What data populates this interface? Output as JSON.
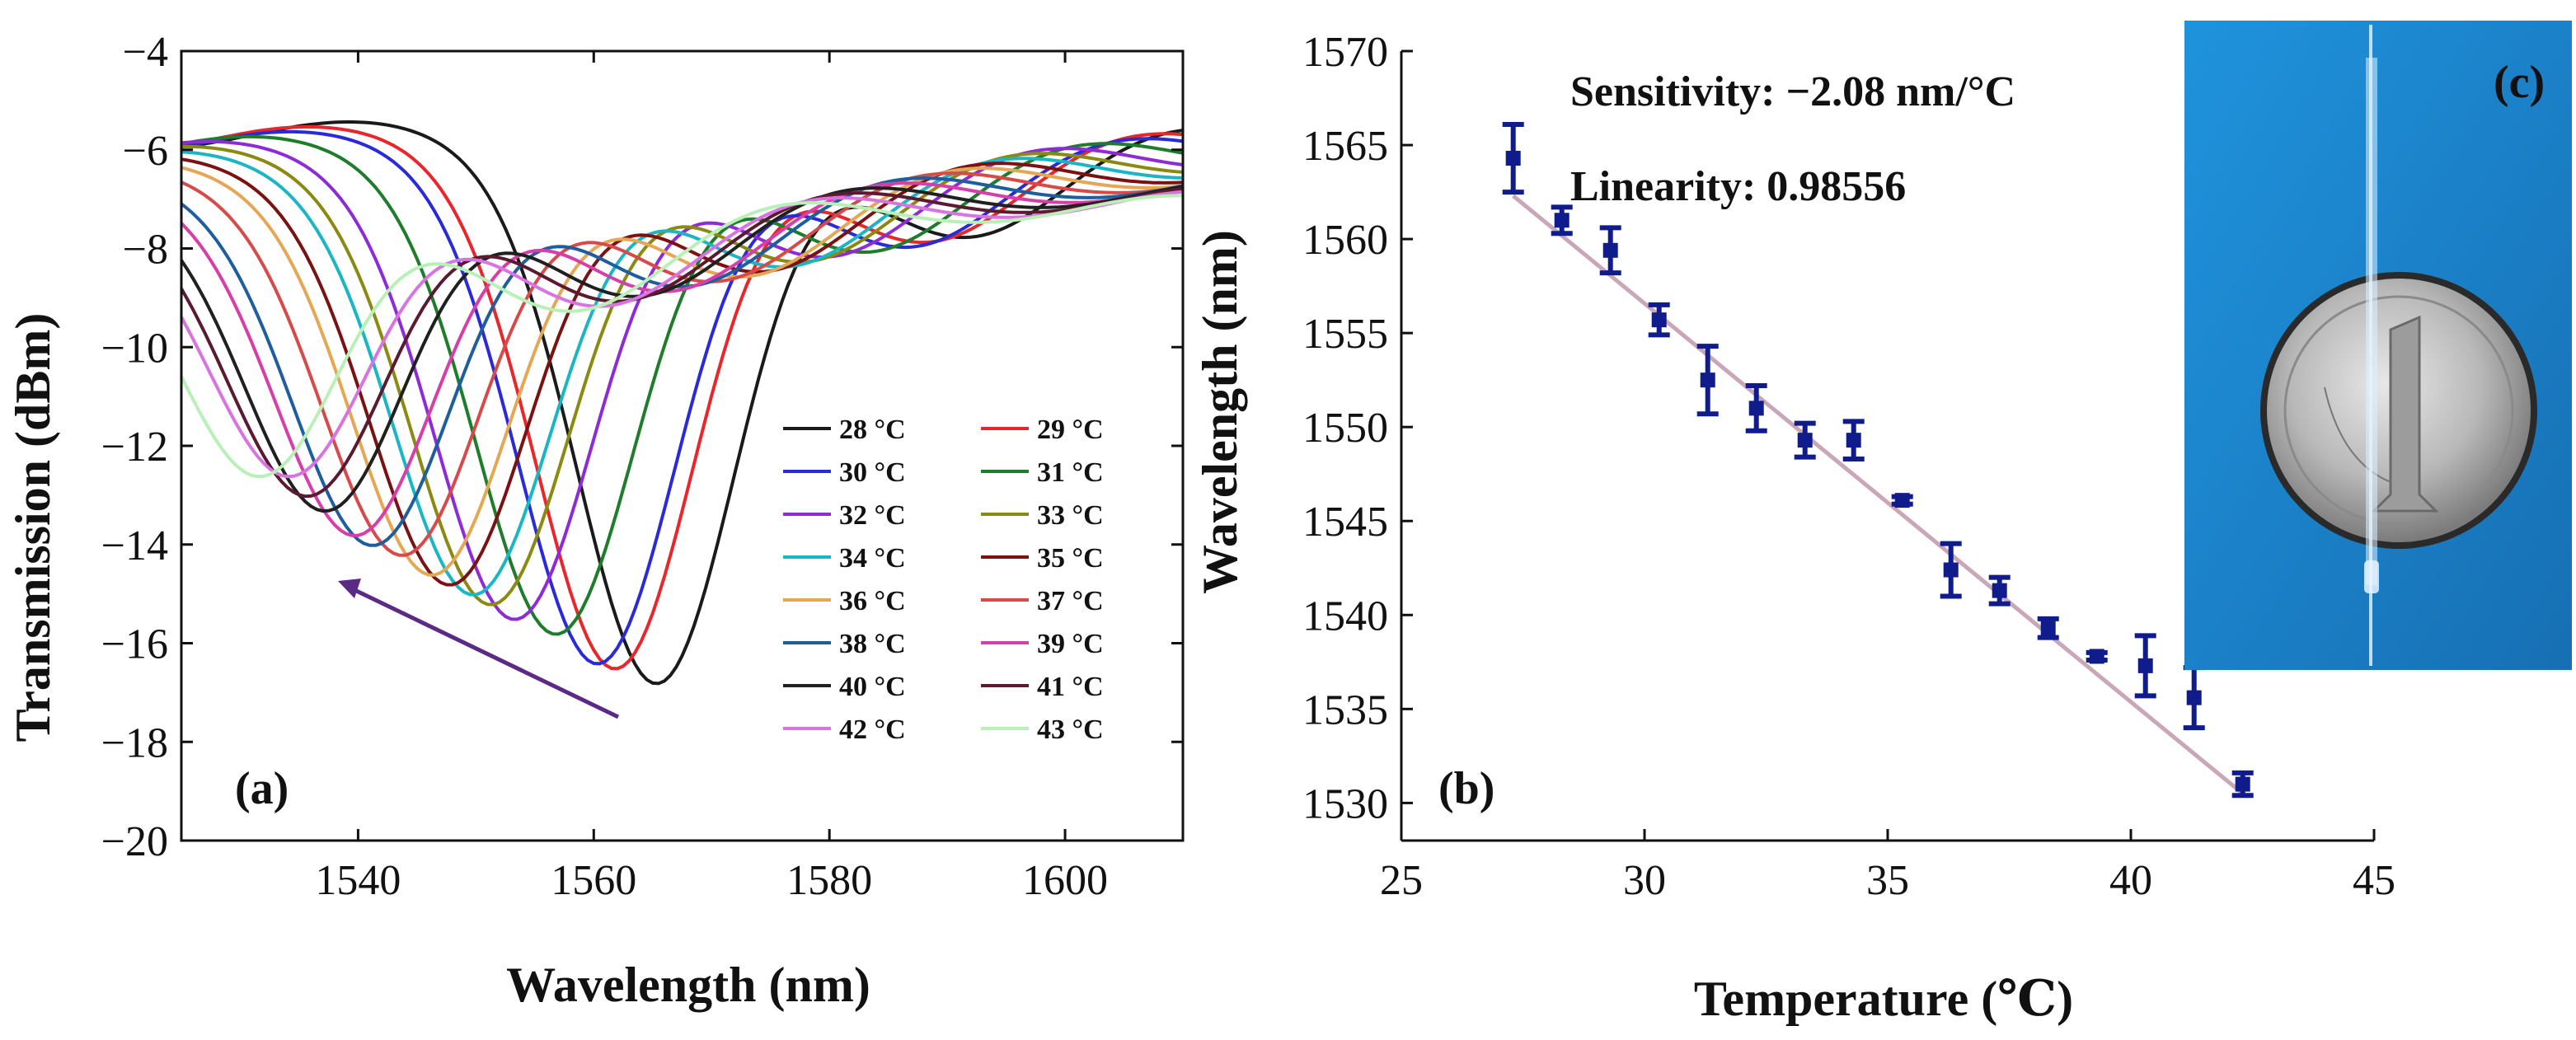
{
  "chart_data": [
    {
      "panel": "(a)",
      "type": "line",
      "title": "",
      "xlabel": "Wavelength (nm)",
      "ylabel": "Transmission (dBm)",
      "xlim": [
        1525,
        1610
      ],
      "ylim": [
        -20,
        -4
      ],
      "xticks": [
        1540,
        1560,
        1580,
        1600
      ],
      "yticks": [
        -20,
        -18,
        -16,
        -14,
        -12,
        -10,
        -8,
        -6,
        -4
      ],
      "legend_location": "lower-right",
      "annotation": "arrow indicating dip shift toward shorter wavelength with increasing temperature",
      "series": [
        {
          "name": "28 °C",
          "color": "#1a1a1a",
          "dip_wavelength": 1565.5,
          "dip_depth": -16.8,
          "baseline": -5.7
        },
        {
          "name": "29 °C",
          "color": "#e8262b",
          "dip_wavelength": 1562.0,
          "dip_depth": -16.5,
          "baseline": -5.8
        },
        {
          "name": "30 °C",
          "color": "#2a2ad9",
          "dip_wavelength": 1560.5,
          "dip_depth": -16.4,
          "baseline": -5.9
        },
        {
          "name": "31 °C",
          "color": "#1e7d2a",
          "dip_wavelength": 1557.0,
          "dip_depth": -15.8,
          "baseline": -6.0
        },
        {
          "name": "32 °C",
          "color": "#8e2bd6",
          "dip_wavelength": 1553.5,
          "dip_depth": -15.5,
          "baseline": -6.1
        },
        {
          "name": "33 °C",
          "color": "#8a8a12",
          "dip_wavelength": 1551.5,
          "dip_depth": -15.2,
          "baseline": -6.2
        },
        {
          "name": "34 °C",
          "color": "#1ab6c4",
          "dip_wavelength": 1550.0,
          "dip_depth": -15.0,
          "baseline": -6.3
        },
        {
          "name": "35 °C",
          "color": "#7a1212",
          "dip_wavelength": 1548.0,
          "dip_depth": -14.8,
          "baseline": -6.4
        },
        {
          "name": "36 °C",
          "color": "#e6a755",
          "dip_wavelength": 1546.5,
          "dip_depth": -14.6,
          "baseline": -6.5
        },
        {
          "name": "37 °C",
          "color": "#d74a4a",
          "dip_wavelength": 1544.0,
          "dip_depth": -14.2,
          "baseline": -6.6
        },
        {
          "name": "38 °C",
          "color": "#1f5e9e",
          "dip_wavelength": 1541.5,
          "dip_depth": -14.0,
          "baseline": -6.7
        },
        {
          "name": "39 °C",
          "color": "#d63ea8",
          "dip_wavelength": 1540.0,
          "dip_depth": -13.8,
          "baseline": -6.8
        },
        {
          "name": "40 °C",
          "color": "#202020",
          "dip_wavelength": 1537.5,
          "dip_depth": -13.3,
          "baseline": -6.9
        },
        {
          "name": "41 °C",
          "color": "#5a1a30",
          "dip_wavelength": 1536.0,
          "dip_depth": -13.0,
          "baseline": -7.0
        },
        {
          "name": "42 °C",
          "color": "#d874e0",
          "dip_wavelength": 1534.5,
          "dip_depth": -12.6,
          "baseline": -7.1
        },
        {
          "name": "43 °C",
          "color": "#b8f0b8",
          "dip_wavelength": 1532.0,
          "dip_depth": -12.6,
          "baseline": -7.2
        }
      ]
    },
    {
      "panel": "(b)",
      "type": "scatter",
      "title": "",
      "xlabel": "Temperature (℃)",
      "ylabel": "Wavelength (nm)",
      "xlim": [
        25,
        45
      ],
      "ylim": [
        1528,
        1570
      ],
      "xticks": [
        25,
        30,
        35,
        40,
        45
      ],
      "yticks": [
        1530,
        1535,
        1540,
        1545,
        1550,
        1555,
        1560,
        1565,
        1570
      ],
      "annotations": [
        "Sensitivity: −2.08 nm/°C",
        "Linearity: 0.98556"
      ],
      "fit": {
        "x_start": 27.3,
        "y_start": 1562.3,
        "x_end": 42.3,
        "y_end": 1530.5,
        "color": "#c9a7b8"
      },
      "marker_color": "#101c8c",
      "points": [
        {
          "x": 27.3,
          "y": 1564.3,
          "err": 1.8
        },
        {
          "x": 28.3,
          "y": 1561.0,
          "err": 0.7
        },
        {
          "x": 29.3,
          "y": 1559.4,
          "err": 1.2
        },
        {
          "x": 30.3,
          "y": 1555.7,
          "err": 0.8
        },
        {
          "x": 31.3,
          "y": 1552.5,
          "err": 1.8
        },
        {
          "x": 32.3,
          "y": 1551.0,
          "err": 1.2
        },
        {
          "x": 33.3,
          "y": 1549.3,
          "err": 0.9
        },
        {
          "x": 34.3,
          "y": 1549.3,
          "err": 1.0
        },
        {
          "x": 35.3,
          "y": 1546.1,
          "err": 0.2
        },
        {
          "x": 36.3,
          "y": 1542.4,
          "err": 1.4
        },
        {
          "x": 37.3,
          "y": 1541.3,
          "err": 0.7
        },
        {
          "x": 38.3,
          "y": 1539.3,
          "err": 0.5
        },
        {
          "x": 39.3,
          "y": 1537.8,
          "err": 0.2
        },
        {
          "x": 40.3,
          "y": 1537.3,
          "err": 1.6
        },
        {
          "x": 41.3,
          "y": 1535.6,
          "err": 1.6
        },
        {
          "x": 42.3,
          "y": 1531.0,
          "err": 0.6
        }
      ]
    }
  ],
  "panel_c": {
    "label": "(c)",
    "image_description_icon": "coin-and-fiber-photo",
    "background_color": "#1a86d0"
  }
}
